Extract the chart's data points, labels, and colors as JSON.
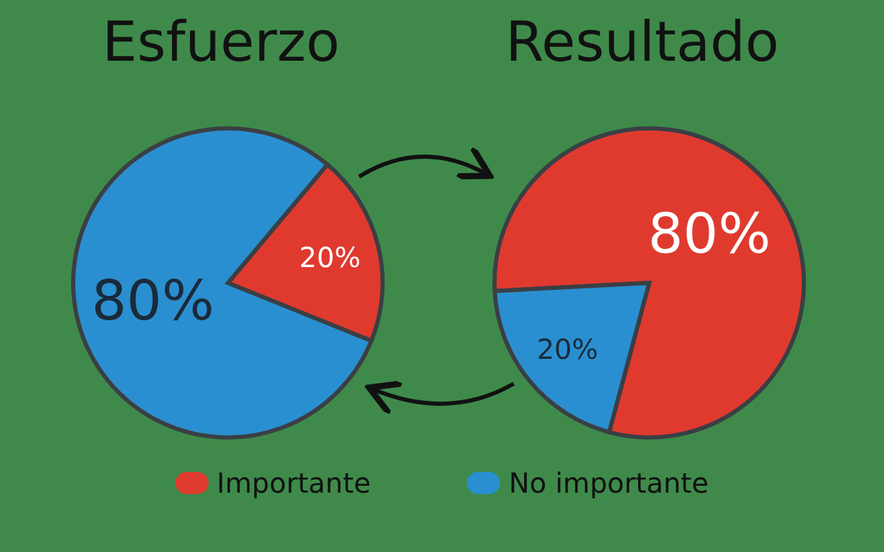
{
  "chart_data": [
    {
      "type": "pie",
      "title": "Esfuerzo",
      "categories": [
        "Importante",
        "No importante"
      ],
      "values": [
        20,
        80
      ],
      "value_labels": [
        "20%",
        "80%"
      ],
      "colors": [
        "#e03a2f",
        "#2a8fd0"
      ],
      "legend": "bottom"
    },
    {
      "type": "pie",
      "title": "Resultado",
      "categories": [
        null,
        null
      ],
      "values": [
        80,
        20
      ],
      "value_labels": [
        "80%",
        "20%"
      ],
      "colors": [
        "#e03a2f",
        "#2a8fd0"
      ]
    }
  ]
}
